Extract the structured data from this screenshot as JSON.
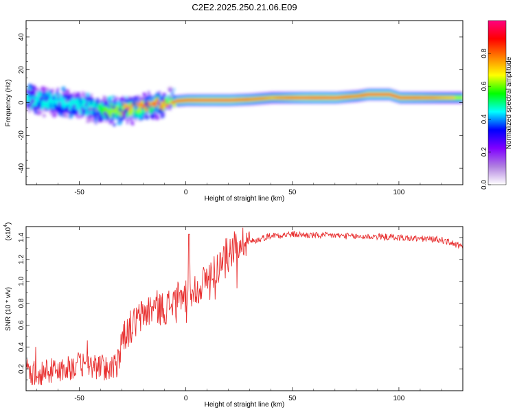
{
  "title": "C2E2.2025.250.21.06.E09",
  "chart_data": [
    {
      "type": "heatmap",
      "title": "C2E2.2025.250.21.06.E09",
      "xlabel": "Height of straight line (km)",
      "ylabel": "Frequency (Hz)",
      "xlim": [
        -75,
        130
      ],
      "ylim": [
        -50,
        50
      ],
      "xticks": [
        -50,
        0,
        50,
        100
      ],
      "xtick_labels": [
        "-50",
        "0",
        "50",
        "100"
      ],
      "yticks": [
        -40,
        -20,
        0,
        20,
        40
      ],
      "ytick_labels": [
        "-40",
        "-20",
        "0",
        "20",
        "40"
      ],
      "ridge": {
        "description_points_x": [
          -75,
          -60,
          -45,
          -40,
          -35,
          -25,
          -15,
          -5,
          0,
          10,
          20,
          30,
          40,
          50,
          60,
          70,
          80,
          85,
          95,
          100,
          110,
          120,
          130
        ],
        "frequency_hz": [
          2,
          0,
          -3,
          -5,
          -5,
          -4,
          -1,
          1,
          1.5,
          1.5,
          1.5,
          2,
          3,
          3,
          3,
          3,
          4,
          5,
          5,
          3,
          3,
          3,
          3
        ],
        "peak_amplitude": [
          0.5,
          0.45,
          0.5,
          0.55,
          0.7,
          0.75,
          0.8,
          0.85,
          0.9,
          0.95,
          0.95,
          0.85,
          0.75,
          0.9,
          1.0,
          0.95,
          0.8,
          0.95,
          0.95,
          0.9,
          0.85,
          0.75,
          0.7
        ]
      },
      "colorbar": {
        "label": "Normalized spectral amplitude",
        "range": [
          0,
          1
        ],
        "ticks": [
          0.0,
          0.2,
          0.4,
          0.6,
          0.8
        ],
        "tick_labels": [
          "0.0",
          "0.2",
          "0.4",
          "0.6",
          "0.8"
        ],
        "colors": [
          "#ffffff",
          "#b080e0",
          "#8000ff",
          "#0000ff",
          "#00ffff",
          "#00ff00",
          "#ffff00",
          "#ff8000",
          "#ff0000",
          "#ff0080"
        ]
      }
    },
    {
      "type": "line",
      "xlabel": "Height of straight line (km)",
      "ylabel": "SNR (10 * v/v)",
      "scale_label": "(x10",
      "scale_exp": "4",
      "scale_close": ")",
      "xlim": [
        -75,
        130
      ],
      "ylim": [
        0,
        1.5
      ],
      "xticks": [
        -50,
        0,
        50,
        100
      ],
      "xtick_labels": [
        "-50",
        "0",
        "50",
        "100"
      ],
      "yticks": [
        0.2,
        0.4,
        0.6,
        0.8,
        1.0,
        1.2,
        1.4
      ],
      "ytick_labels": [
        "0.2",
        "0.4",
        "0.6",
        "0.8",
        "1.0",
        "1.2",
        "1.4"
      ],
      "color": "#e83030",
      "series": [
        {
          "name": "SNR",
          "x": [
            -75,
            -70,
            -65,
            -60,
            -55,
            -50,
            -45,
            -40,
            -35,
            -32,
            -30,
            -25,
            -20,
            -15,
            -10,
            -5,
            0,
            5,
            10,
            15,
            20,
            25,
            30,
            35,
            40,
            50,
            60,
            70,
            80,
            90,
            100,
            110,
            120,
            125,
            130
          ],
          "y": [
            0.12,
            0.13,
            0.14,
            0.15,
            0.17,
            0.2,
            0.19,
            0.18,
            0.17,
            0.18,
            0.45,
            0.55,
            0.65,
            0.72,
            0.7,
            0.78,
            0.82,
            0.88,
            0.98,
            1.08,
            1.22,
            1.3,
            1.35,
            1.38,
            1.41,
            1.42,
            1.41,
            1.41,
            1.4,
            1.4,
            1.39,
            1.38,
            1.37,
            1.34,
            1.3
          ]
        }
      ]
    }
  ]
}
